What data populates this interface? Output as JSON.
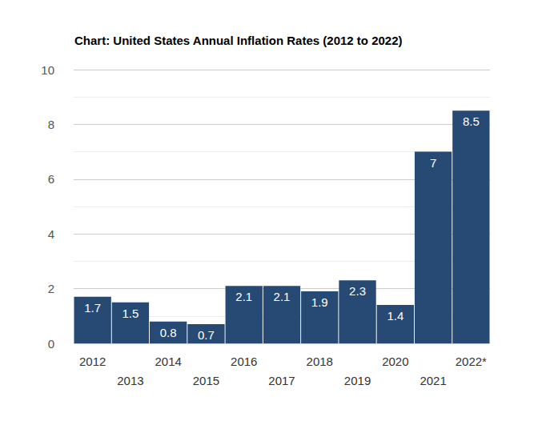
{
  "chart_data": {
    "type": "bar",
    "title": "Chart: United States Annual Inflation Rates (2012 to 2022)",
    "categories": [
      "2012",
      "2013",
      "2014",
      "2015",
      "2016",
      "2017",
      "2018",
      "2019",
      "2020",
      "2021",
      "2022*"
    ],
    "values": [
      1.7,
      1.5,
      0.8,
      0.7,
      2.1,
      2.1,
      1.9,
      2.3,
      1.4,
      7,
      8.5
    ],
    "color": "#264a73",
    "ylim": [
      0,
      10
    ],
    "yticks": [
      0,
      2,
      4,
      6,
      8,
      10
    ],
    "grid": true,
    "data_labels": true
  }
}
